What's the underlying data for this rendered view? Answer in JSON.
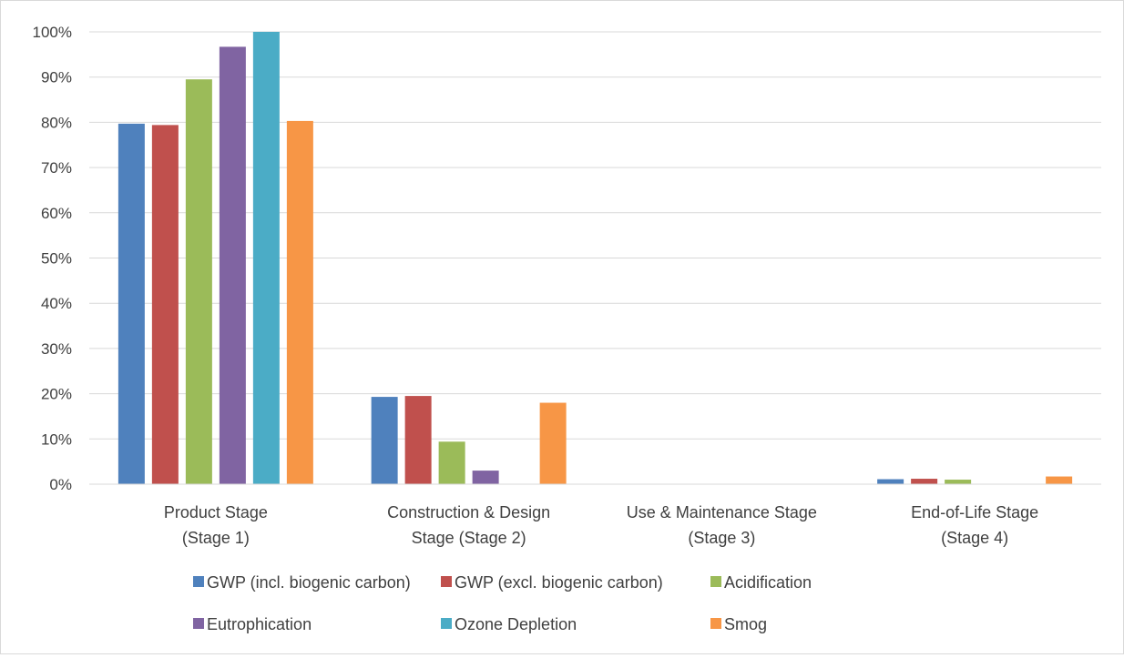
{
  "chart_data": {
    "type": "bar",
    "categories": [
      [
        "Product Stage",
        "(Stage 1)"
      ],
      [
        "Construction & Design",
        "Stage (Stage 2)"
      ],
      [
        "Use & Maintenance Stage",
        "(Stage 3)"
      ],
      [
        "End-of-Life Stage",
        "(Stage 4)"
      ]
    ],
    "series": [
      {
        "name": "GWP (incl. biogenic carbon)",
        "color": "#4f81bd",
        "values": [
          79.7,
          19.3,
          0,
          1.1
        ]
      },
      {
        "name": "GWP (excl. biogenic carbon)",
        "color": "#c0504d",
        "values": [
          79.4,
          19.5,
          0,
          1.2
        ]
      },
      {
        "name": "Acidification",
        "color": "#9bbb59",
        "values": [
          89.5,
          9.4,
          0,
          1.0
        ]
      },
      {
        "name": "Eutrophication",
        "color": "#8064a2",
        "values": [
          96.7,
          3.0,
          0,
          0
        ]
      },
      {
        "name": "Ozone Depletion",
        "color": "#4bacc6",
        "values": [
          100,
          0,
          0,
          0
        ]
      },
      {
        "name": "Smog",
        "color": "#f79646",
        "values": [
          80.3,
          18.0,
          0,
          1.7
        ]
      }
    ],
    "yticks": [
      "0%",
      "10%",
      "20%",
      "30%",
      "40%",
      "50%",
      "60%",
      "70%",
      "80%",
      "90%",
      "100%"
    ],
    "ylim": [
      0,
      100
    ],
    "grid": true,
    "legend_position": "bottom",
    "title": "",
    "xlabel": "",
    "ylabel": ""
  }
}
